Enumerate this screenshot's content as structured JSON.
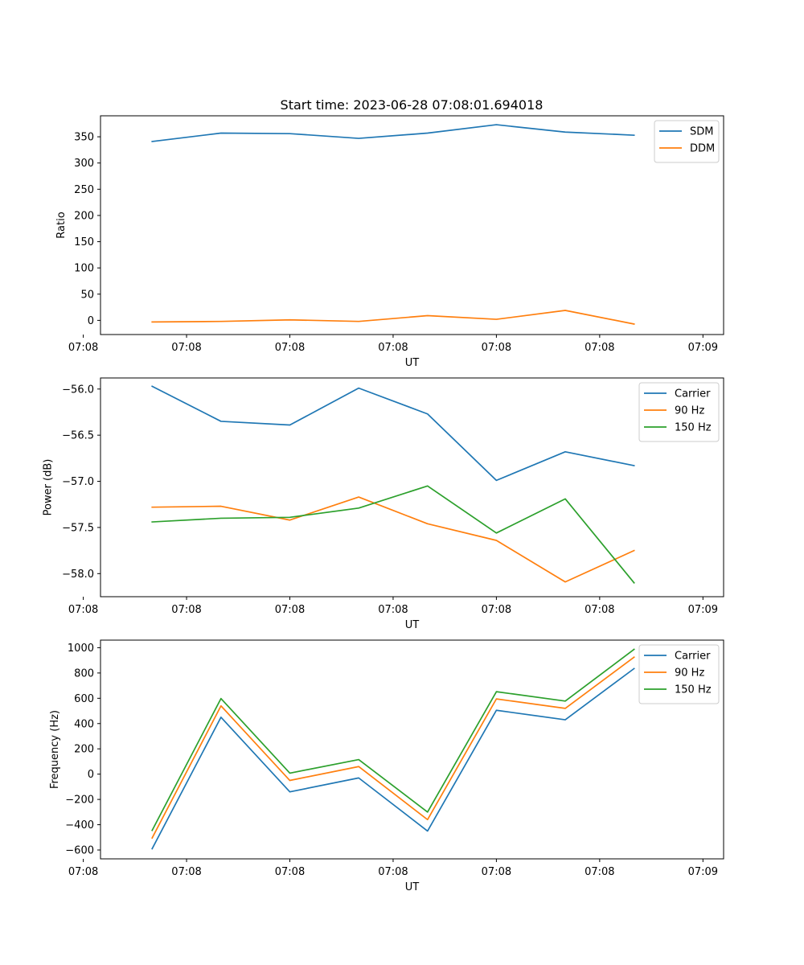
{
  "figure": {
    "title": "Start time: 2023-06-28 07:08:01.694018"
  },
  "chart_data": [
    {
      "type": "line",
      "xlabel": "UT",
      "ylabel": "Ratio",
      "x": [
        1,
        2,
        3,
        4,
        5,
        6,
        7,
        8
      ],
      "xlim": [
        0.25,
        9.3
      ],
      "ylim": [
        -27,
        390
      ],
      "xticks": [
        {
          "v": 0,
          "label": "07:08"
        },
        {
          "v": 1.5,
          "label": "07:08"
        },
        {
          "v": 3,
          "label": "07:08"
        },
        {
          "v": 4.5,
          "label": "07:08"
        },
        {
          "v": 6,
          "label": "07:08"
        },
        {
          "v": 7.5,
          "label": "07:08"
        },
        {
          "v": 9,
          "label": "07:09"
        }
      ],
      "yticks": [
        0,
        50,
        100,
        150,
        200,
        250,
        300,
        350
      ],
      "legend_position": "top-right",
      "series": [
        {
          "name": "SDM",
          "color": "#1f77b4",
          "values": [
            341,
            357,
            356,
            347,
            357,
            373,
            359,
            353
          ]
        },
        {
          "name": "DDM",
          "color": "#ff7f0e",
          "values": [
            -3,
            -2,
            1,
            -2,
            9,
            2,
            19,
            -7
          ]
        }
      ]
    },
    {
      "type": "line",
      "xlabel": "UT",
      "ylabel": "Power (dB)",
      "x": [
        1,
        2,
        3,
        4,
        5,
        6,
        7,
        8
      ],
      "xlim": [
        0.25,
        9.3
      ],
      "ylim": [
        -58.25,
        -55.88
      ],
      "xticks": [
        {
          "v": 0,
          "label": "07:08"
        },
        {
          "v": 1.5,
          "label": "07:08"
        },
        {
          "v": 3,
          "label": "07:08"
        },
        {
          "v": 4.5,
          "label": "07:08"
        },
        {
          "v": 6,
          "label": "07:08"
        },
        {
          "v": 7.5,
          "label": "07:08"
        },
        {
          "v": 9,
          "label": "07:09"
        }
      ],
      "yticks": [
        {
          "v": -58.0,
          "label": "−58.0"
        },
        {
          "v": -57.5,
          "label": "−57.5"
        },
        {
          "v": -57.0,
          "label": "−57.0"
        },
        {
          "v": -56.5,
          "label": "−56.5"
        },
        {
          "v": -56.0,
          "label": "−56.0"
        }
      ],
      "legend_position": "top-right",
      "series": [
        {
          "name": "Carrier",
          "color": "#1f77b4",
          "values": [
            -55.97,
            -56.35,
            -56.39,
            -55.99,
            -56.27,
            -56.99,
            -56.68,
            -56.83
          ]
        },
        {
          "name": "90 Hz",
          "color": "#ff7f0e",
          "values": [
            -57.28,
            -57.27,
            -57.42,
            -57.17,
            -57.46,
            -57.64,
            -58.09,
            -57.75
          ]
        },
        {
          "name": "150 Hz",
          "color": "#2ca02c",
          "values": [
            -57.44,
            -57.4,
            -57.39,
            -57.29,
            -57.05,
            -57.56,
            -57.19,
            -58.1
          ]
        }
      ]
    },
    {
      "type": "line",
      "xlabel": "UT",
      "ylabel": "Frequency (Hz)",
      "x": [
        1,
        2,
        3,
        4,
        5,
        6,
        7,
        8
      ],
      "xlim": [
        0.25,
        9.3
      ],
      "ylim": [
        -670,
        1060
      ],
      "xticks": [
        {
          "v": 0,
          "label": "07:08"
        },
        {
          "v": 1.5,
          "label": "07:08"
        },
        {
          "v": 3,
          "label": "07:08"
        },
        {
          "v": 4.5,
          "label": "07:08"
        },
        {
          "v": 6,
          "label": "07:08"
        },
        {
          "v": 7.5,
          "label": "07:08"
        },
        {
          "v": 9,
          "label": "07:09"
        }
      ],
      "yticks": [
        {
          "v": -600,
          "label": "−600"
        },
        {
          "v": -400,
          "label": "−400"
        },
        {
          "v": -200,
          "label": "−200"
        },
        {
          "v": 0,
          "label": "0"
        },
        {
          "v": 200,
          "label": "200"
        },
        {
          "v": 400,
          "label": "400"
        },
        {
          "v": 600,
          "label": "600"
        },
        {
          "v": 800,
          "label": "800"
        },
        {
          "v": 1000,
          "label": "1000"
        }
      ],
      "legend_position": "top-right",
      "series": [
        {
          "name": "Carrier",
          "color": "#1f77b4",
          "values": [
            -590,
            450,
            -140,
            -30,
            -450,
            505,
            430,
            835
          ]
        },
        {
          "name": "90 Hz",
          "color": "#ff7f0e",
          "values": [
            -505,
            540,
            -50,
            60,
            -360,
            595,
            520,
            925
          ]
        },
        {
          "name": "150 Hz",
          "color": "#2ca02c",
          "values": [
            -445,
            598,
            8,
            115,
            -300,
            652,
            578,
            987
          ]
        }
      ]
    }
  ]
}
